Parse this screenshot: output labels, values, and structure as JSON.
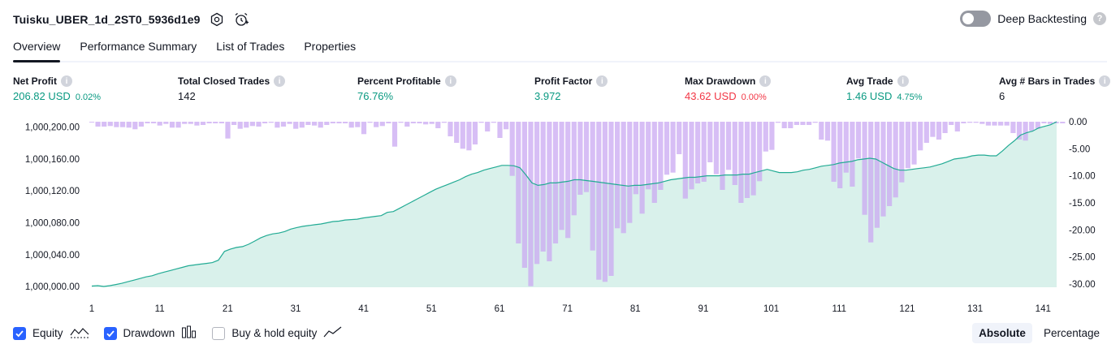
{
  "header": {
    "title": "Tuisku_UBER_1d_2ST0_5936d1e9",
    "settings_icon": "gear-icon",
    "alert_icon": "alarm-clock-plus-icon"
  },
  "deep_backtesting": {
    "label": "Deep Backtesting",
    "enabled": false,
    "help": "?"
  },
  "tabs": [
    {
      "label": "Overview",
      "active": true
    },
    {
      "label": "Performance Summary",
      "active": false
    },
    {
      "label": "List of Trades",
      "active": false
    },
    {
      "label": "Properties",
      "active": false
    }
  ],
  "metrics": [
    {
      "label": "Net Profit",
      "value": "206.82 USD",
      "pct": "0.02%",
      "color": "#089981"
    },
    {
      "label": "Total Closed Trades",
      "value": "142",
      "pct": "",
      "color": "#131722"
    },
    {
      "label": "Percent Profitable",
      "value": "76.76%",
      "pct": "",
      "color": "#089981"
    },
    {
      "label": "Profit Factor",
      "value": "3.972",
      "pct": "",
      "color": "#089981"
    },
    {
      "label": "Max Drawdown",
      "value": "43.62 USD",
      "pct": "0.00%",
      "color": "#f23645"
    },
    {
      "label": "Avg Trade",
      "value": "1.46 USD",
      "pct": "4.75%",
      "color": "#089981"
    },
    {
      "label": "Avg # Bars in Trades",
      "value": "6",
      "pct": "",
      "color": "#131722"
    }
  ],
  "chart_data": {
    "type": "line",
    "x_ticks": [
      "1",
      "11",
      "21",
      "31",
      "41",
      "51",
      "61",
      "71",
      "81",
      "91",
      "101",
      "111",
      "121",
      "131",
      "141"
    ],
    "y_left_ticks": [
      "1,000,000.00",
      "1,000,040.00",
      "1,000,080.00",
      "1,000,120.00",
      "1,000,160.00",
      "1,000,200.00"
    ],
    "y_right_ticks": [
      "0.00",
      "-5.00",
      "-10.00",
      "-15.00",
      "-20.00",
      "-25.00",
      "-30.00"
    ],
    "xlim": [
      1,
      143
    ],
    "ylim_left": [
      999999,
      1000206.82
    ],
    "ylim_right": [
      -30.6,
      0
    ],
    "colors": {
      "equity_line": "#22ab94",
      "equity_fill": "#d2efe8",
      "drawdown": "#c9a8f2"
    },
    "series": [
      {
        "name": "Equity",
        "type": "area",
        "values": [
          1000000.5,
          1000001,
          1000000,
          1000001,
          1000002.5,
          1000004,
          1000006,
          1000008,
          1000010,
          1000012,
          1000013.5,
          1000016,
          1000018,
          1000020,
          1000022,
          1000024,
          1000026,
          1000027,
          1000028,
          1000029,
          1000030,
          1000033,
          1000044,
          1000047,
          1000049,
          1000050,
          1000053,
          1000057,
          1000061,
          1000064,
          1000066,
          1000067,
          1000069,
          1000072,
          1000074,
          1000075.5,
          1000076.5,
          1000077.5,
          1000078.5,
          1000080,
          1000081.5,
          1000082,
          1000083.5,
          1000084,
          1000084.5,
          1000086,
          1000087,
          1000088,
          1000089,
          1000093,
          1000094,
          1000098,
          1000102,
          1000106,
          1000110,
          1000114,
          1000118,
          1000122,
          1000125,
          1000128,
          1000131,
          1000134,
          1000138,
          1000141,
          1000143,
          1000146,
          1000148,
          1000150,
          1000152,
          1000152,
          1000151.5,
          1000149,
          1000140,
          1000130,
          1000127,
          1000128,
          1000130,
          1000130,
          1000131,
          1000132,
          1000134,
          1000134,
          1000133,
          1000132,
          1000131,
          1000130,
          1000129,
          1000128,
          1000127,
          1000126,
          1000127,
          1000127,
          1000128,
          1000129,
          1000130,
          1000132,
          1000134,
          1000135,
          1000136,
          1000137,
          1000137,
          1000138,
          1000139,
          1000139,
          1000139,
          1000140,
          1000140,
          1000140,
          1000141,
          1000141,
          1000143,
          1000145,
          1000147,
          1000145,
          1000143,
          1000143,
          1000143,
          1000144,
          1000146,
          1000147,
          1000149,
          1000151,
          1000152,
          1000153,
          1000155,
          1000156,
          1000157,
          1000159,
          1000160,
          1000161,
          1000160,
          1000156,
          1000152,
          1000148,
          1000146,
          1000146,
          1000147,
          1000148,
          1000149,
          1000150,
          1000152,
          1000154,
          1000157,
          1000160,
          1000161,
          1000162,
          1000164,
          1000165,
          1000165,
          1000164,
          1000164,
          1000170,
          1000177,
          1000183,
          1000190,
          1000193,
          1000195,
          1000199,
          1000201,
          1000203,
          1000206.82
        ]
      },
      {
        "name": "Drawdown",
        "type": "bar",
        "values": [
          -0.1,
          -0.9,
          -0.9,
          -0.8,
          -1.0,
          -1.0,
          -1.1,
          -1.4,
          -0.9,
          -0.3,
          -0.3,
          -0.7,
          -0.4,
          -1.1,
          -1.1,
          -0.4,
          -0.4,
          -0.7,
          -0.6,
          -0.3,
          -0.3,
          -0.3,
          -3.1,
          -0.6,
          -1.3,
          -1.1,
          -0.8,
          -0.9,
          -0.3,
          -0.2,
          -1.1,
          -0.9,
          -0.4,
          -1.3,
          -1.1,
          -0.6,
          -0.7,
          -1.1,
          -0.6,
          -0.3,
          -0.3,
          -0.3,
          -1.1,
          -1.0,
          -2.3,
          -0.2,
          -1.0,
          -0.8,
          -0.3,
          -4.6,
          -0.2,
          -0.9,
          -0.3,
          -0.3,
          -0.5,
          -0.4,
          -1.2,
          -0.2,
          -2.7,
          -3.9,
          -5.0,
          -5.3,
          -4.2,
          -0.2,
          -1.8,
          -0.2,
          -3.0,
          -1.4,
          -10.0,
          -22.5,
          -27.0,
          -30.4,
          -26.3,
          -24.0,
          -25.8,
          -22.5,
          -20.0,
          -21.5,
          -17.3,
          -13.5,
          -13.0,
          -23.8,
          -29.2,
          -29.6,
          -28.5,
          -19.7,
          -20.6,
          -18.7,
          -13.4,
          -17.0,
          -12.5,
          -15.0,
          -12.6,
          -9.8,
          -9.4,
          -6.0,
          -14.2,
          -12.5,
          -11.4,
          -11.1,
          -7.5,
          -9.7,
          -12.6,
          -8.9,
          -11.7,
          -15.0,
          -14.1,
          -13.6,
          -11.0,
          -5.5,
          -5.2,
          -0.2,
          -1.2,
          -1.2,
          -0.6,
          -0.6,
          -0.6,
          -0.2,
          -3.3,
          -3.5,
          -11.1,
          -12.3,
          -9.4,
          -12.0,
          -6.8,
          -17.2,
          -22.3,
          -19.6,
          -17.5,
          -15.6,
          -14.0,
          -11.2,
          -8.6,
          -7.9,
          -5.3,
          -3.9,
          -2.8,
          -3.3,
          -2.1,
          -0.6,
          -1.8,
          -0.3,
          -0.2,
          -0.2,
          -0.4,
          -0.7,
          -0.7,
          -0.7,
          -0.7,
          -2.1,
          -3.3,
          -3.5,
          -1.7,
          -1.3,
          -0.3,
          -0.4,
          -0.3,
          -0.3
        ]
      }
    ],
    "bar_x_start": 1,
    "bar_x_step": 0.91
  },
  "legend": [
    {
      "label": "Equity",
      "checked": true,
      "icon": "area-line-icon"
    },
    {
      "label": "Drawdown",
      "checked": true,
      "icon": "bar-chart-icon"
    },
    {
      "label": "Buy & hold equity",
      "checked": false,
      "icon": "trend-line-icon"
    }
  ],
  "modes": [
    {
      "label": "Absolute",
      "active": true
    },
    {
      "label": "Percentage",
      "active": false
    }
  ]
}
